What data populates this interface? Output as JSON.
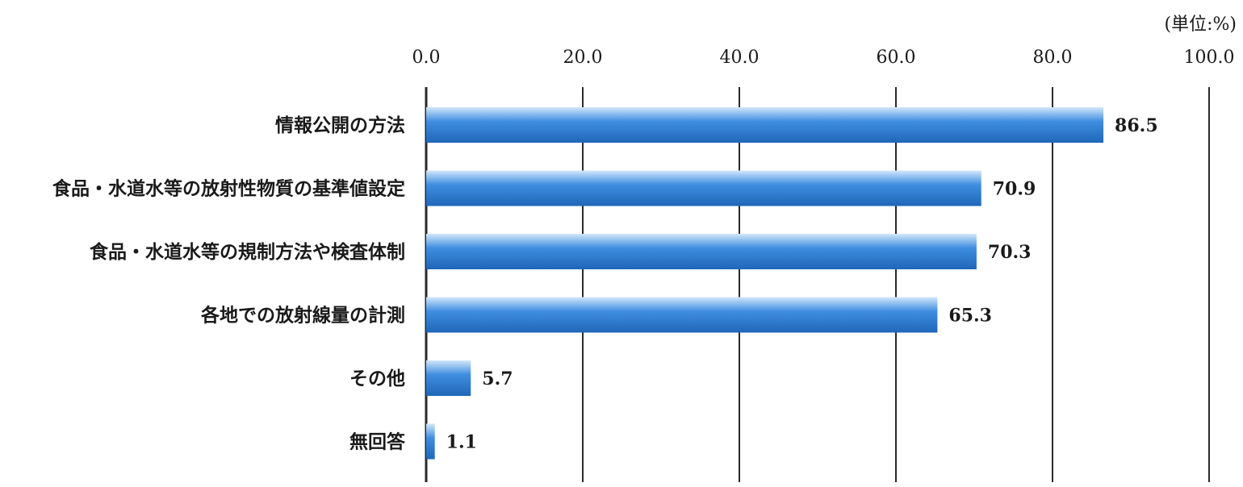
{
  "chart_data": {
    "type": "bar",
    "orientation": "horizontal",
    "unit_note": "(単位:%)",
    "categories": [
      "情報公開の方法",
      "食品・水道水等の放射性物質の基準値設定",
      "食品・水道水等の規制方法や検査体制",
      "各地での放射線量の計測",
      "その他",
      "無回答"
    ],
    "values": [
      86.5,
      70.9,
      70.3,
      65.3,
      5.7,
      1.1
    ],
    "value_labels": [
      "86.5",
      "70.9",
      "70.3",
      "65.3",
      "5.7",
      "1.1"
    ],
    "xlim": [
      0,
      100
    ],
    "x_ticks": [
      0,
      20,
      40,
      60,
      80,
      100
    ],
    "x_tick_labels": [
      "0.0",
      "20.0",
      "40.0",
      "60.0",
      "80.0",
      "100.0"
    ],
    "tick_position": "top",
    "grid": true,
    "colors": {
      "bar_dark": "#1f66b8",
      "bar_mid": "#3f8ee0",
      "bar_light": "#d2e7fb",
      "grid": "#2a2a2a"
    }
  }
}
